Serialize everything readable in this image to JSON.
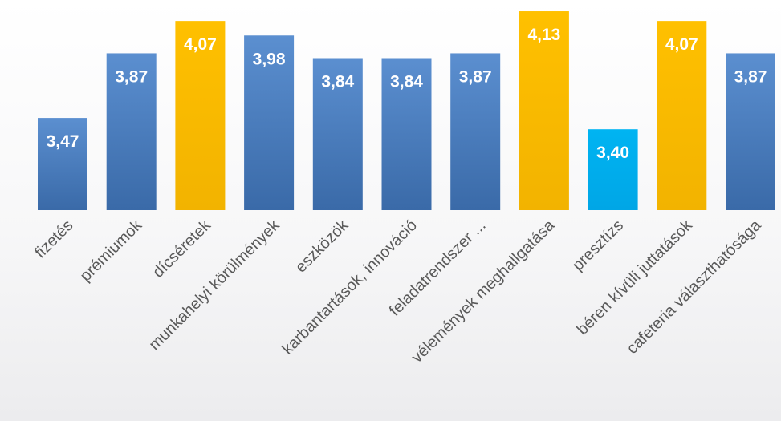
{
  "chart_data": {
    "type": "bar",
    "title": "",
    "xlabel": "",
    "ylabel": "",
    "ylim": [
      2.9,
      4.15
    ],
    "grid": false,
    "legend": "none",
    "categories": [
      "fizetés",
      "prémiumok",
      "dícséretek",
      "munkahelyi körülmények",
      "eszközök",
      "karbantartások, innováció",
      "feladatrendszer ...",
      "vélemények meghallgatása",
      "presztízs",
      "béren kívüli juttatások",
      "cafeteria választhatósága"
    ],
    "values": [
      3.47,
      3.87,
      4.07,
      3.98,
      3.84,
      3.84,
      3.87,
      4.13,
      3.4,
      4.07,
      3.87
    ],
    "value_labels": [
      "3,47",
      "3,87",
      "4,07",
      "3,98",
      "3,84",
      "3,84",
      "3,87",
      "4,13",
      "3,40",
      "4,07",
      "3,87"
    ],
    "bar_colors": [
      "#4a7ec0",
      "#4a7ec0",
      "#ffc000",
      "#4a7ec0",
      "#4a7ec0",
      "#4a7ec0",
      "#4a7ec0",
      "#ffc000",
      "#00b0f0",
      "#ffc000",
      "#4a7ec0"
    ],
    "label_color": "#ffffff",
    "axis_label_color": "#595959"
  }
}
